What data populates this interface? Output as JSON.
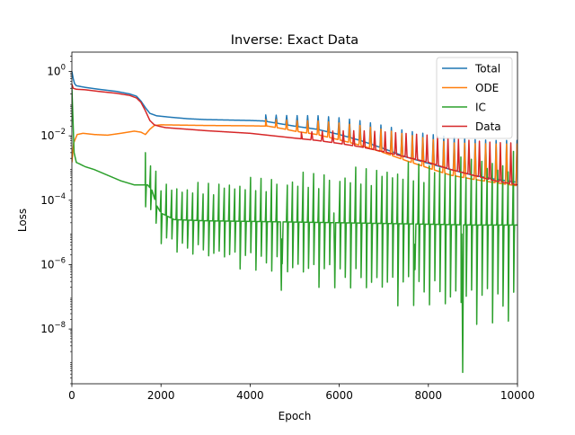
{
  "chart_data": {
    "type": "line",
    "title": "Inverse: Exact Data",
    "xlabel": "Epoch",
    "ylabel": "Loss",
    "xlim": [
      0,
      10000
    ],
    "ylim_log10": [
      -9.7,
      0.6
    ],
    "yscale": "log",
    "grid": false,
    "legend_position": "top-right",
    "x_ticks": [
      {
        "value": 0,
        "label": "0"
      },
      {
        "value": 2000,
        "label": "2000"
      },
      {
        "value": 4000,
        "label": "4000"
      },
      {
        "value": 6000,
        "label": "6000"
      },
      {
        "value": 8000,
        "label": "8000"
      },
      {
        "value": 10000,
        "label": "10000"
      }
    ],
    "y_ticks": [
      {
        "exp": 0,
        "base": "10",
        "sup": "0"
      },
      {
        "exp": -2,
        "base": "10",
        "sup": "−2"
      },
      {
        "exp": -4,
        "base": "10",
        "sup": "−4"
      },
      {
        "exp": -6,
        "base": "10",
        "sup": "−6"
      },
      {
        "exp": -8,
        "base": "10",
        "sup": "−8"
      }
    ],
    "series": [
      {
        "name": "Total",
        "color": "#1f77b4",
        "base": [
          [
            0,
            1.0
          ],
          [
            30,
            0.6
          ],
          [
            60,
            0.42
          ],
          [
            100,
            0.36
          ],
          [
            300,
            0.32
          ],
          [
            600,
            0.28
          ],
          [
            1000,
            0.24
          ],
          [
            1300,
            0.2
          ],
          [
            1450,
            0.17
          ],
          [
            1550,
            0.12
          ],
          [
            1650,
            0.075
          ],
          [
            1750,
            0.05
          ],
          [
            1900,
            0.042
          ],
          [
            2200,
            0.038
          ],
          [
            2600,
            0.034
          ],
          [
            3000,
            0.032
          ],
          [
            3500,
            0.031
          ],
          [
            4000,
            0.03
          ],
          [
            4300,
            0.029
          ],
          [
            4500,
            0.026
          ],
          [
            5000,
            0.02
          ],
          [
            5500,
            0.016
          ],
          [
            6000,
            0.011
          ],
          [
            6500,
            0.007
          ],
          [
            7000,
            0.004
          ],
          [
            7500,
            0.0022
          ],
          [
            8000,
            0.0014
          ],
          [
            8500,
            0.0009
          ],
          [
            9000,
            0.0006
          ],
          [
            9500,
            0.00045
          ],
          [
            10000,
            0.00036
          ]
        ],
        "spikes": {
          "start": 4350,
          "end": 10000,
          "period": 235,
          "dir": "up",
          "mag_start": 0.2,
          "mag_end": 1.3
        }
      },
      {
        "name": "ODE",
        "color": "#ff7f0e",
        "base": [
          [
            0,
            0.0015
          ],
          [
            40,
            0.006
          ],
          [
            120,
            0.011
          ],
          [
            250,
            0.012
          ],
          [
            500,
            0.011
          ],
          [
            800,
            0.0105
          ],
          [
            1100,
            0.012
          ],
          [
            1400,
            0.014
          ],
          [
            1550,
            0.013
          ],
          [
            1650,
            0.011
          ],
          [
            1750,
            0.016
          ],
          [
            1850,
            0.021
          ],
          [
            2000,
            0.022
          ],
          [
            3000,
            0.021
          ],
          [
            4000,
            0.0205
          ],
          [
            4400,
            0.02
          ],
          [
            4700,
            0.017
          ],
          [
            5000,
            0.014
          ],
          [
            5500,
            0.011
          ],
          [
            6000,
            0.0075
          ],
          [
            6500,
            0.005
          ],
          [
            7000,
            0.003
          ],
          [
            7500,
            0.0017
          ],
          [
            8000,
            0.001
          ],
          [
            8500,
            0.0006
          ],
          [
            9000,
            0.00045
          ],
          [
            9500,
            0.00035
          ],
          [
            10000,
            0.00028
          ]
        ],
        "spikes": {
          "start": 4350,
          "end": 10000,
          "period": 235,
          "dir": "up",
          "mag_start": 0.2,
          "mag_end": 1.3
        }
      },
      {
        "name": "IC",
        "color": "#2ca02c",
        "base": [
          [
            0,
            0.3
          ],
          [
            20,
            0.05
          ],
          [
            50,
            0.003
          ],
          [
            100,
            0.0015
          ],
          [
            300,
            0.0011
          ],
          [
            500,
            0.0009
          ],
          [
            800,
            0.0006
          ],
          [
            1100,
            0.0004
          ],
          [
            1400,
            0.0003
          ],
          [
            1700,
            0.0003
          ],
          [
            1800,
            0.0002
          ],
          [
            1900,
            7e-05
          ],
          [
            2000,
            4e-05
          ],
          [
            2300,
            2.5e-05
          ],
          [
            3000,
            2.3e-05
          ],
          [
            4000,
            2.2e-05
          ],
          [
            5000,
            2.1e-05
          ],
          [
            6000,
            2e-05
          ],
          [
            7000,
            1.9e-05
          ],
          [
            8000,
            1.8e-05
          ],
          [
            9000,
            1.7e-05
          ],
          [
            10000,
            1.7e-05
          ]
        ],
        "spikes": {
          "start": 1650,
          "end": 10000,
          "period": 118,
          "dir": "both",
          "mag_start": 1.0,
          "mag_end": 2.3,
          "down_mag_start": 0.8,
          "down_mag_end": 3.2
        },
        "deep_spikes": [
          [
            4700,
            1.6e-07
          ],
          [
            8770,
            4.5e-10
          ],
          [
            5900,
            5e-07
          ],
          [
            7700,
            7e-07
          ]
        ]
      },
      {
        "name": "Data",
        "color": "#d62728",
        "base": [
          [
            0,
            0.4
          ],
          [
            30,
            0.3
          ],
          [
            100,
            0.28
          ],
          [
            300,
            0.27
          ],
          [
            600,
            0.24
          ],
          [
            1000,
            0.21
          ],
          [
            1300,
            0.18
          ],
          [
            1450,
            0.15
          ],
          [
            1550,
            0.11
          ],
          [
            1650,
            0.06
          ],
          [
            1750,
            0.03
          ],
          [
            1850,
            0.022
          ],
          [
            1950,
            0.02
          ],
          [
            2100,
            0.018
          ],
          [
            2600,
            0.016
          ],
          [
            3000,
            0.0145
          ],
          [
            4000,
            0.012
          ],
          [
            5000,
            0.0085
          ],
          [
            5500,
            0.0072
          ],
          [
            6000,
            0.0058
          ],
          [
            6500,
            0.0045
          ],
          [
            7000,
            0.0032
          ],
          [
            7500,
            0.0022
          ],
          [
            8000,
            0.0015
          ],
          [
            8500,
            0.0009
          ],
          [
            9000,
            0.0006
          ],
          [
            9500,
            0.0004
          ],
          [
            10000,
            0.0003
          ]
        ],
        "spikes": {
          "start": 5150,
          "end": 10000,
          "period": 235,
          "dir": "up",
          "mag_start": 0.2,
          "mag_end": 1.3
        }
      }
    ]
  }
}
